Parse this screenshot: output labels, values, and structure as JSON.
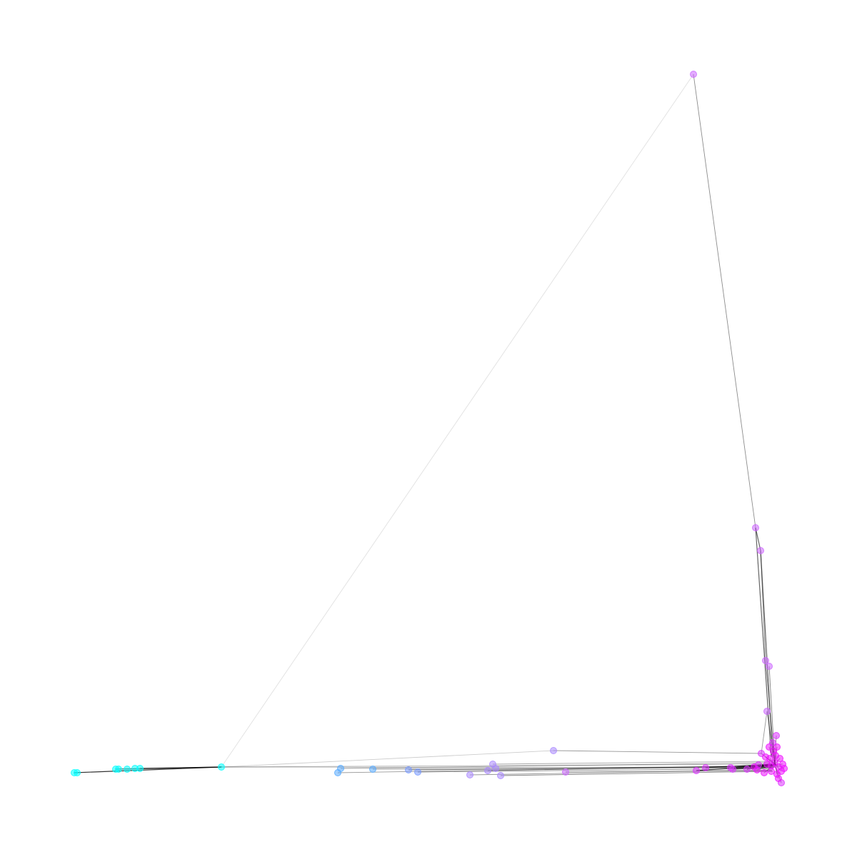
{
  "diagram": {
    "type": "network-graph",
    "colors": {
      "background": "#ffffff",
      "edge": "#000000",
      "cyan": "#00ffff",
      "sky": "#55aaff",
      "blue": "#7799ff",
      "lavender": "#aa88ff",
      "violet": "#cc66ff",
      "magenta": "#dd33ff",
      "hot": "#ee11ff"
    },
    "legend": null,
    "title": null
  }
}
